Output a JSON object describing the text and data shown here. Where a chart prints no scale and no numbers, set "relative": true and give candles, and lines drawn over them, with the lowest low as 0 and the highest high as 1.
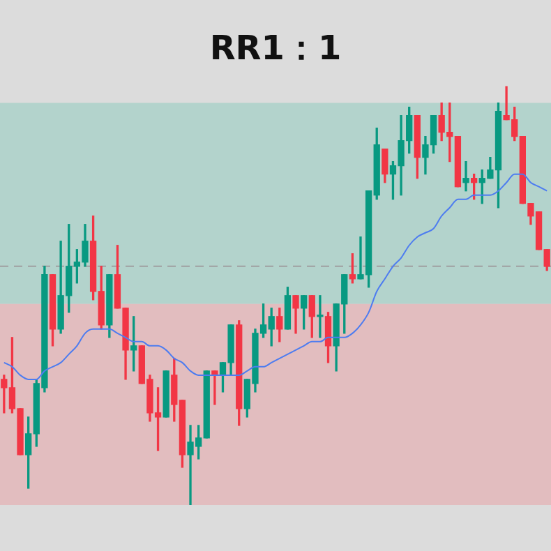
{
  "chart_data": {
    "type": "candlestick",
    "title": "RR1：1",
    "relative": true,
    "tick_labels": false,
    "categories": [
      null,
      null,
      null,
      null,
      null,
      null,
      null,
      null,
      null,
      null,
      null,
      null,
      null,
      null,
      null,
      null,
      null,
      null,
      null,
      null,
      null,
      null,
      null,
      null,
      null,
      null,
      null,
      null,
      null,
      null,
      null,
      null,
      null,
      null,
      null,
      null,
      null,
      null,
      null,
      null,
      null,
      null,
      null,
      null,
      null,
      null,
      null,
      null,
      null,
      null,
      null,
      null,
      null,
      null,
      null,
      null,
      null,
      null,
      null,
      null,
      null,
      null,
      null,
      null,
      null,
      null,
      null,
      null
    ],
    "ohlc": [
      [
        0.3,
        0.31,
        0.22,
        0.28
      ],
      [
        0.28,
        0.4,
        0.22,
        0.23
      ],
      [
        0.23,
        0.23,
        0.12,
        0.12
      ],
      [
        0.12,
        0.21,
        0.04,
        0.17
      ],
      [
        0.17,
        0.3,
        0.14,
        0.29
      ],
      [
        0.28,
        0.57,
        0.27,
        0.55
      ],
      [
        0.55,
        0.55,
        0.38,
        0.42
      ],
      [
        0.42,
        0.63,
        0.41,
        0.5
      ],
      [
        0.5,
        0.67,
        0.46,
        0.57
      ],
      [
        0.57,
        0.61,
        0.53,
        0.58
      ],
      [
        0.58,
        0.67,
        0.57,
        0.63
      ],
      [
        0.63,
        0.69,
        0.49,
        0.51
      ],
      [
        0.51,
        0.57,
        0.42,
        0.43
      ],
      [
        0.43,
        0.55,
        0.4,
        0.55
      ],
      [
        0.55,
        0.62,
        0.47,
        0.47
      ],
      [
        0.47,
        0.47,
        0.3,
        0.37
      ],
      [
        0.37,
        0.45,
        0.32,
        0.38
      ],
      [
        0.38,
        0.38,
        0.29,
        0.29
      ],
      [
        0.3,
        0.31,
        0.2,
        0.22
      ],
      [
        0.22,
        0.28,
        0.13,
        0.21
      ],
      [
        0.21,
        0.32,
        0.21,
        0.32
      ],
      [
        0.31,
        0.35,
        0.2,
        0.24
      ],
      [
        0.25,
        0.25,
        0.09,
        0.12
      ],
      [
        0.12,
        0.19,
        0.0,
        0.15
      ],
      [
        0.14,
        0.19,
        0.11,
        0.16
      ],
      [
        0.16,
        0.32,
        0.16,
        0.32
      ],
      [
        0.32,
        0.32,
        0.24,
        0.31
      ],
      [
        0.31,
        0.34,
        0.27,
        0.34
      ],
      [
        0.34,
        0.43,
        0.31,
        0.43
      ],
      [
        0.43,
        0.44,
        0.19,
        0.23
      ],
      [
        0.23,
        0.3,
        0.21,
        0.3
      ],
      [
        0.29,
        0.42,
        0.27,
        0.41
      ],
      [
        0.41,
        0.48,
        0.4,
        0.43
      ],
      [
        0.42,
        0.47,
        0.38,
        0.45
      ],
      [
        0.45,
        0.47,
        0.39,
        0.42
      ],
      [
        0.42,
        0.52,
        0.42,
        0.5
      ],
      [
        0.5,
        0.5,
        0.41,
        0.47
      ],
      [
        0.47,
        0.5,
        0.42,
        0.5
      ],
      [
        0.5,
        0.5,
        0.4,
        0.45
      ],
      [
        0.45,
        0.5,
        0.4,
        0.45
      ],
      [
        0.45,
        0.46,
        0.34,
        0.38
      ],
      [
        0.38,
        0.48,
        0.32,
        0.48
      ],
      [
        0.48,
        0.55,
        0.41,
        0.55
      ],
      [
        0.55,
        0.6,
        0.53,
        0.54
      ],
      [
        0.54,
        0.64,
        0.54,
        0.55
      ],
      [
        0.55,
        0.75,
        0.52,
        0.75
      ],
      [
        0.74,
        0.9,
        0.73,
        0.86
      ],
      [
        0.85,
        0.85,
        0.77,
        0.79
      ],
      [
        0.79,
        0.82,
        0.73,
        0.81
      ],
      [
        0.81,
        0.93,
        0.74,
        0.87
      ],
      [
        0.87,
        0.95,
        0.84,
        0.93
      ],
      [
        0.93,
        0.93,
        0.78,
        0.83
      ],
      [
        0.83,
        0.88,
        0.79,
        0.86
      ],
      [
        0.86,
        0.93,
        0.84,
        0.93
      ],
      [
        0.93,
        0.96,
        0.87,
        0.89
      ],
      [
        0.89,
        0.96,
        0.82,
        0.88
      ],
      [
        0.88,
        0.88,
        0.76,
        0.76
      ],
      [
        0.77,
        0.82,
        0.75,
        0.78
      ],
      [
        0.78,
        0.79,
        0.73,
        0.77
      ],
      [
        0.77,
        0.8,
        0.72,
        0.78
      ],
      [
        0.78,
        0.83,
        0.78,
        0.8
      ],
      [
        0.8,
        0.96,
        0.71,
        0.94
      ],
      [
        0.93,
        1.0,
        0.92,
        0.92
      ],
      [
        0.92,
        0.95,
        0.87,
        0.88
      ],
      [
        0.88,
        0.88,
        0.72,
        0.72
      ],
      [
        0.72,
        0.72,
        0.67,
        0.69
      ],
      [
        0.7,
        0.7,
        0.61,
        0.61
      ],
      [
        0.61,
        0.61,
        0.56,
        0.57
      ]
    ],
    "colors": [
      "#f23645",
      "#f23645",
      "#f23645",
      "#089981",
      "#089981",
      "#089981",
      "#f23645",
      "#089981",
      "#089981",
      "#089981",
      "#089981",
      "#f23645",
      "#f23645",
      "#089981",
      "#f23645",
      "#f23645",
      "#089981",
      "#f23645",
      "#f23645",
      "#f23645",
      "#089981",
      "#f23645",
      "#f23645",
      "#089981",
      "#089981",
      "#089981",
      "#f23645",
      "#089981",
      "#089981",
      "#f23645",
      "#089981",
      "#089981",
      "#089981",
      "#089981",
      "#f23645",
      "#089981",
      "#f23645",
      "#089981",
      "#f23645",
      "#089981",
      "#f23645",
      "#089981",
      "#089981",
      "#f23645",
      "#089981",
      "#089981",
      "#089981",
      "#f23645",
      "#089981",
      "#089981",
      "#089981",
      "#f23645",
      "#089981",
      "#089981",
      "#f23645",
      "#f23645",
      "#f23645",
      "#089981",
      "#f23645",
      "#089981",
      "#089981",
      "#089981",
      "#f23645",
      "#f23645",
      "#f23645",
      "#f23645",
      "#f23645",
      "#f23645"
    ],
    "series": [
      {
        "type": "line",
        "color": "#4d7cf0",
        "values": [
          0.34,
          0.33,
          0.31,
          0.3,
          0.3,
          0.32,
          0.33,
          0.34,
          0.36,
          0.38,
          0.41,
          0.42,
          0.42,
          0.42,
          0.41,
          0.4,
          0.39,
          0.39,
          0.38,
          0.38,
          0.37,
          0.35,
          0.34,
          0.32,
          0.31,
          0.31,
          0.31,
          0.31,
          0.31,
          0.31,
          0.32,
          0.33,
          0.33,
          0.34,
          0.35,
          0.36,
          0.37,
          0.38,
          0.39,
          0.39,
          0.4,
          0.4,
          0.4,
          0.41,
          0.43,
          0.46,
          0.51,
          0.54,
          0.57,
          0.59,
          0.62,
          0.64,
          0.65,
          0.66,
          0.69,
          0.71,
          0.73,
          0.73,
          0.74,
          0.74,
          0.74,
          0.75,
          0.77,
          0.79,
          0.79,
          0.77,
          0.76,
          0.75
        ]
      }
    ],
    "ref_lines": [
      {
        "axis": "y",
        "value": 0.57,
        "color": "#a0a0a0",
        "line_style": "dashed"
      }
    ],
    "bands": [
      {
        "axis": "y",
        "from": 0.48,
        "to": 0.96,
        "color": "#b3d3cc"
      },
      {
        "axis": "y",
        "from": 0,
        "to": 0.48,
        "color": "#e2bdbf"
      }
    ]
  }
}
